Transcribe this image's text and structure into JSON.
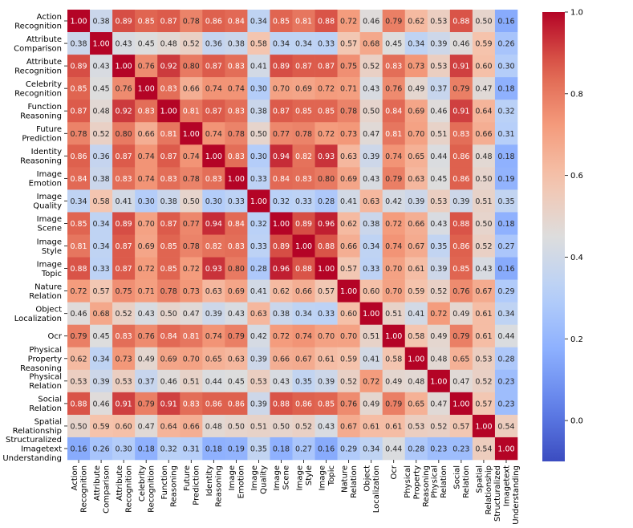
{
  "chart_data": {
    "type": "heatmap",
    "title": "",
    "xlabel": "",
    "ylabel": "",
    "row_labels": [
      "Action Recognition",
      "Attribute Comparison",
      "Attribute Recognition",
      "Celebrity Recognition",
      "Function Reasoning",
      "Future Prediction",
      "Identity Reasoning",
      "Image Emotion",
      "Image Quality",
      "Image Scene",
      "Image Style",
      "Image Topic",
      "Nature Relation",
      "Object Localization",
      "Ocr",
      "Physical Property Reasoning",
      "Physical Relation",
      "Social Relation",
      "Spatial Relationship",
      "Structuralized Imagetext Understanding"
    ],
    "row_label_lines": [
      [
        "Action",
        "Recognition"
      ],
      [
        "Attribute",
        "Comparison"
      ],
      [
        "Attribute",
        "Recognition"
      ],
      [
        "Celebrity",
        "Recognition"
      ],
      [
        "Function",
        "Reasoning"
      ],
      [
        "Future",
        "Prediction"
      ],
      [
        "Identity",
        "Reasoning"
      ],
      [
        "Image",
        "Emotion"
      ],
      [
        "Image",
        "Quality"
      ],
      [
        "Image",
        "Scene"
      ],
      [
        "Image",
        "Style"
      ],
      [
        "Image",
        "Topic"
      ],
      [
        "Nature",
        "Relation"
      ],
      [
        "Object",
        "Localization"
      ],
      [
        "Ocr"
      ],
      [
        "Physical",
        "Property",
        "Reasoning"
      ],
      [
        "Physical",
        "Relation"
      ],
      [
        "Social",
        "Relation"
      ],
      [
        "Spatial",
        "Relationship"
      ],
      [
        "Structuralized",
        "Imagetext",
        "Understanding"
      ]
    ],
    "values": [
      [
        1.0,
        0.38,
        0.89,
        0.85,
        0.87,
        0.78,
        0.86,
        0.84,
        0.34,
        0.85,
        0.81,
        0.88,
        0.72,
        0.46,
        0.79,
        0.62,
        0.53,
        0.88,
        0.5,
        0.16
      ],
      [
        0.38,
        1.0,
        0.43,
        0.45,
        0.48,
        0.52,
        0.36,
        0.38,
        0.58,
        0.34,
        0.34,
        0.33,
        0.57,
        0.68,
        0.45,
        0.34,
        0.39,
        0.46,
        0.59,
        0.26
      ],
      [
        0.89,
        0.43,
        1.0,
        0.76,
        0.92,
        0.8,
        0.87,
        0.83,
        0.41,
        0.89,
        0.87,
        0.87,
        0.75,
        0.52,
        0.83,
        0.73,
        0.53,
        0.91,
        0.6,
        0.3
      ],
      [
        0.85,
        0.45,
        0.76,
        1.0,
        0.83,
        0.66,
        0.74,
        0.74,
        0.3,
        0.7,
        0.69,
        0.72,
        0.71,
        0.43,
        0.76,
        0.49,
        0.37,
        0.79,
        0.47,
        0.18
      ],
      [
        0.87,
        0.48,
        0.92,
        0.83,
        1.0,
        0.81,
        0.87,
        0.83,
        0.38,
        0.87,
        0.85,
        0.85,
        0.78,
        0.5,
        0.84,
        0.69,
        0.46,
        0.91,
        0.64,
        0.32
      ],
      [
        0.78,
        0.52,
        0.8,
        0.66,
        0.81,
        1.0,
        0.74,
        0.78,
        0.5,
        0.77,
        0.78,
        0.72,
        0.73,
        0.47,
        0.81,
        0.7,
        0.51,
        0.83,
        0.66,
        0.31
      ],
      [
        0.86,
        0.36,
        0.87,
        0.74,
        0.87,
        0.74,
        1.0,
        0.83,
        0.3,
        0.94,
        0.82,
        0.93,
        0.63,
        0.39,
        0.74,
        0.65,
        0.44,
        0.86,
        0.48,
        0.18
      ],
      [
        0.84,
        0.38,
        0.83,
        0.74,
        0.83,
        0.78,
        0.83,
        1.0,
        0.33,
        0.84,
        0.83,
        0.8,
        0.69,
        0.43,
        0.79,
        0.63,
        0.45,
        0.86,
        0.5,
        0.19
      ],
      [
        0.34,
        0.58,
        0.41,
        0.3,
        0.38,
        0.5,
        0.3,
        0.33,
        1.0,
        0.32,
        0.33,
        0.28,
        0.41,
        0.63,
        0.42,
        0.39,
        0.53,
        0.39,
        0.51,
        0.35
      ],
      [
        0.85,
        0.34,
        0.89,
        0.7,
        0.87,
        0.77,
        0.94,
        0.84,
        0.32,
        1.0,
        0.89,
        0.96,
        0.62,
        0.38,
        0.72,
        0.66,
        0.43,
        0.88,
        0.5,
        0.18
      ],
      [
        0.81,
        0.34,
        0.87,
        0.69,
        0.85,
        0.78,
        0.82,
        0.83,
        0.33,
        0.89,
        1.0,
        0.88,
        0.66,
        0.34,
        0.74,
        0.67,
        0.35,
        0.86,
        0.52,
        0.27
      ],
      [
        0.88,
        0.33,
        0.87,
        0.72,
        0.85,
        0.72,
        0.93,
        0.8,
        0.28,
        0.96,
        0.88,
        1.0,
        0.57,
        0.33,
        0.7,
        0.61,
        0.39,
        0.85,
        0.43,
        0.16
      ],
      [
        0.72,
        0.57,
        0.75,
        0.71,
        0.78,
        0.73,
        0.63,
        0.69,
        0.41,
        0.62,
        0.66,
        0.57,
        1.0,
        0.6,
        0.7,
        0.59,
        0.52,
        0.76,
        0.67,
        0.29
      ],
      [
        0.46,
        0.68,
        0.52,
        0.43,
        0.5,
        0.47,
        0.39,
        0.43,
        0.63,
        0.38,
        0.34,
        0.33,
        0.6,
        1.0,
        0.51,
        0.41,
        0.72,
        0.49,
        0.61,
        0.34
      ],
      [
        0.79,
        0.45,
        0.83,
        0.76,
        0.84,
        0.81,
        0.74,
        0.79,
        0.42,
        0.72,
        0.74,
        0.7,
        0.7,
        0.51,
        1.0,
        0.58,
        0.49,
        0.79,
        0.61,
        0.44
      ],
      [
        0.62,
        0.34,
        0.73,
        0.49,
        0.69,
        0.7,
        0.65,
        0.63,
        0.39,
        0.66,
        0.67,
        0.61,
        0.59,
        0.41,
        0.58,
        1.0,
        0.48,
        0.65,
        0.53,
        0.28
      ],
      [
        0.53,
        0.39,
        0.53,
        0.37,
        0.46,
        0.51,
        0.44,
        0.45,
        0.53,
        0.43,
        0.35,
        0.39,
        0.52,
        0.72,
        0.49,
        0.48,
        1.0,
        0.47,
        0.52,
        0.23
      ],
      [
        0.88,
        0.46,
        0.91,
        0.79,
        0.91,
        0.83,
        0.86,
        0.86,
        0.39,
        0.88,
        0.86,
        0.85,
        0.76,
        0.49,
        0.79,
        0.65,
        0.47,
        1.0,
        0.57,
        0.23
      ],
      [
        0.5,
        0.59,
        0.6,
        0.47,
        0.64,
        0.66,
        0.48,
        0.5,
        0.51,
        0.5,
        0.52,
        0.43,
        0.67,
        0.61,
        0.61,
        0.53,
        0.52,
        0.57,
        1.0,
        0.54
      ],
      [
        0.16,
        0.26,
        0.3,
        0.18,
        0.32,
        0.31,
        0.18,
        0.19,
        0.35,
        0.18,
        0.27,
        0.16,
        0.29,
        0.34,
        0.44,
        0.28,
        0.23,
        0.23,
        0.54,
        1.0
      ]
    ],
    "colorbar": {
      "colormap": "coolwarm",
      "vmin": -0.1,
      "vmax": 1.0,
      "ticks": [
        "0.0",
        "0.2",
        "0.4",
        "0.6",
        "0.8",
        "1.0"
      ]
    },
    "annotations": true
  }
}
